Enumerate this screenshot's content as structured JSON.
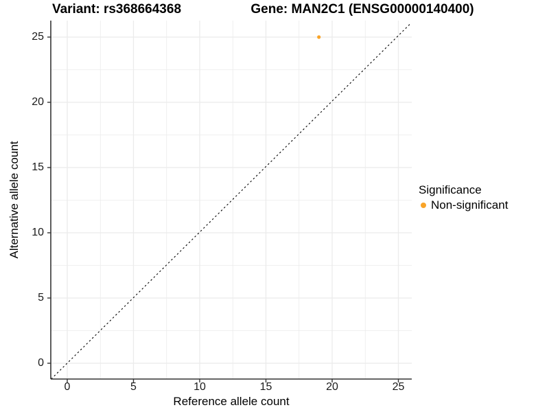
{
  "title": {
    "variant": "Variant: rs368664368",
    "gene": "Gene: MAN2C1 (ENSG00000140400)"
  },
  "axes": {
    "x_label": "Reference allele count",
    "y_label": "Alternative allele count"
  },
  "legend": {
    "title": "Significance",
    "items": [
      {
        "label": "Non-significant",
        "color": "#F9A428"
      }
    ]
  },
  "colors": {
    "background": "#FFFFFF",
    "grid": "#EBEBEB",
    "axis_line": "#333333",
    "tick_text": "#1A1A1A",
    "title_text": "#000000",
    "point": "#F9A428",
    "reference_line": "#000000"
  },
  "chart_data": {
    "type": "scatter",
    "title": "Variant: rs368664368 | Gene: MAN2C1 (ENSG00000140400)",
    "xlabel": "Reference allele count",
    "ylabel": "Alternative allele count",
    "x_ticks": [
      0,
      5,
      10,
      15,
      20,
      25
    ],
    "y_ticks": [
      0,
      5,
      10,
      15,
      20,
      25
    ],
    "xlim": [
      -1.3,
      26.0
    ],
    "ylim": [
      -1.2,
      26.3
    ],
    "grid": true,
    "minor_grid_step": 2.5,
    "grid_max": 25,
    "series": [
      {
        "name": "Non-significant",
        "color": "#F9A428",
        "points": [
          {
            "x": 19,
            "y": 25
          }
        ]
      }
    ],
    "reference_line": {
      "type": "identity",
      "equation": "y = x",
      "style": "dashed"
    },
    "legend_position": "right",
    "legend_title": "Significance"
  }
}
